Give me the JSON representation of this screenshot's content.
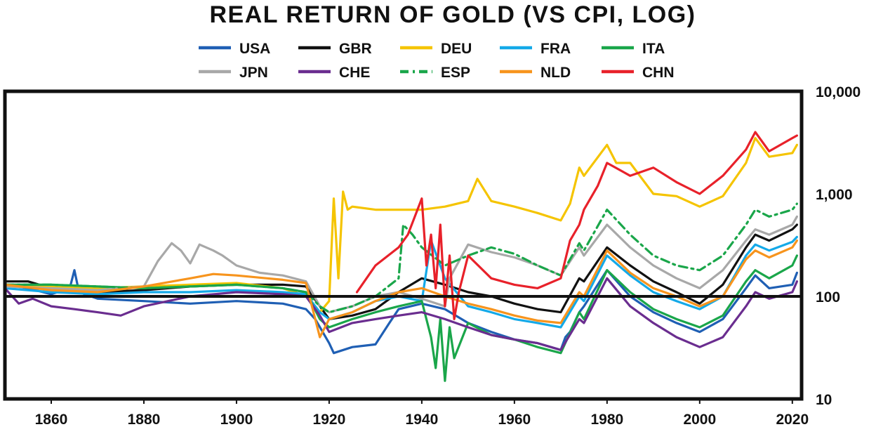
{
  "chart_data": {
    "type": "line",
    "title": "REAL RETURN OF GOLD (VS CPI, LOG)",
    "xlabel": "",
    "ylabel": "",
    "y_scale": "log",
    "xlim": [
      1850,
      2022
    ],
    "ylim": [
      10,
      10000
    ],
    "x_ticks": [
      1860,
      1880,
      1900,
      1920,
      1940,
      1960,
      1980,
      2000,
      2020
    ],
    "x_tick_labels": [
      "1860",
      "1880",
      "1900",
      "1920",
      "1940",
      "1960",
      "1980",
      "2000",
      "2020"
    ],
    "y_ticks": [
      10,
      100,
      1000,
      10000
    ],
    "y_tick_labels": [
      "10",
      "100",
      "1,000",
      "10,000"
    ],
    "y_axis_side": "right",
    "reference_line": 100,
    "legend_position": "top",
    "series": [
      {
        "name": "USA",
        "color": "#1f5fb4",
        "dash": "solid",
        "x": [
          1850,
          1855,
          1860,
          1864,
          1865,
          1866,
          1870,
          1880,
          1890,
          1900,
          1910,
          1915,
          1917,
          1920,
          1921,
          1925,
          1930,
          1933,
          1935,
          1940,
          1945,
          1950,
          1955,
          1960,
          1965,
          1970,
          1971,
          1972,
          1974,
          1975,
          1980,
          1985,
          1990,
          1995,
          2000,
          2005,
          2010,
          2012,
          2015,
          2020,
          2021
        ],
        "values": [
          130,
          120,
          105,
          120,
          180,
          110,
          95,
          90,
          85,
          90,
          85,
          75,
          60,
          35,
          28,
          32,
          34,
          55,
          75,
          85,
          75,
          55,
          45,
          38,
          35,
          30,
          40,
          45,
          70,
          80,
          180,
          100,
          70,
          55,
          45,
          60,
          120,
          160,
          120,
          130,
          170
        ]
      },
      {
        "name": "GBR",
        "color": "#111111",
        "dash": "solid",
        "x": [
          1850,
          1855,
          1860,
          1870,
          1880,
          1890,
          1900,
          1910,
          1915,
          1918,
          1920,
          1925,
          1930,
          1935,
          1940,
          1945,
          1950,
          1955,
          1960,
          1965,
          1970,
          1974,
          1975,
          1980,
          1985,
          1990,
          1995,
          2000,
          2005,
          2010,
          2012,
          2015,
          2020,
          2021
        ],
        "values": [
          140,
          140,
          120,
          110,
          115,
          125,
          130,
          130,
          125,
          80,
          60,
          65,
          75,
          110,
          150,
          130,
          110,
          100,
          85,
          75,
          70,
          150,
          140,
          300,
          200,
          140,
          110,
          85,
          130,
          300,
          400,
          350,
          450,
          500
        ]
      },
      {
        "name": "DEU",
        "color": "#f5c400",
        "dash": "solid",
        "x": [
          1850,
          1860,
          1870,
          1880,
          1890,
          1900,
          1910,
          1915,
          1918,
          1920,
          1921,
          1922,
          1923,
          1924,
          1925,
          1930,
          1935,
          1940,
          1945,
          1950,
          1952,
          1955,
          1960,
          1965,
          1970,
          1972,
          1974,
          1975,
          1980,
          1982,
          1985,
          1990,
          1995,
          2000,
          2005,
          2010,
          2012,
          2015,
          2020,
          2021
        ],
        "values": [
          130,
          125,
          120,
          125,
          130,
          135,
          120,
          100,
          70,
          90,
          900,
          150,
          1050,
          700,
          750,
          700,
          700,
          700,
          750,
          850,
          1400,
          850,
          750,
          650,
          550,
          800,
          1800,
          1500,
          3000,
          2000,
          2000,
          1000,
          950,
          750,
          950,
          2000,
          3500,
          2300,
          2500,
          3000
        ]
      },
      {
        "name": "FRA",
        "color": "#14a9e8",
        "dash": "solid",
        "x": [
          1850,
          1860,
          1870,
          1880,
          1890,
          1900,
          1910,
          1915,
          1918,
          1920,
          1925,
          1930,
          1935,
          1940,
          1942,
          1945,
          1950,
          1955,
          1960,
          1965,
          1970,
          1974,
          1975,
          1980,
          1985,
          1990,
          1995,
          2000,
          2005,
          2010,
          2012,
          2015,
          2020,
          2021
        ],
        "values": [
          120,
          110,
          105,
          110,
          110,
          115,
          110,
          105,
          70,
          60,
          70,
          90,
          100,
          90,
          350,
          150,
          80,
          70,
          60,
          55,
          50,
          100,
          90,
          250,
          160,
          110,
          90,
          75,
          100,
          250,
          320,
          280,
          340,
          380
        ]
      },
      {
        "name": "ITA",
        "color": "#1aa64a",
        "dash": "solid",
        "x": [
          1850,
          1860,
          1870,
          1880,
          1890,
          1900,
          1910,
          1915,
          1918,
          1920,
          1925,
          1930,
          1935,
          1940,
          1942,
          1943,
          1944,
          1945,
          1946,
          1947,
          1950,
          1955,
          1960,
          1965,
          1970,
          1974,
          1975,
          1980,
          1985,
          1990,
          1995,
          2000,
          2005,
          2010,
          2012,
          2015,
          2020,
          2021
        ],
        "values": [
          130,
          130,
          125,
          120,
          125,
          130,
          120,
          110,
          60,
          50,
          60,
          70,
          80,
          90,
          40,
          20,
          60,
          15,
          50,
          25,
          55,
          42,
          38,
          32,
          28,
          70,
          60,
          180,
          110,
          75,
          60,
          50,
          65,
          140,
          180,
          150,
          200,
          250
        ]
      },
      {
        "name": "JPN",
        "color": "#a8a8a8",
        "dash": "solid",
        "x": [
          1850,
          1860,
          1870,
          1880,
          1883,
          1886,
          1888,
          1890,
          1892,
          1895,
          1897,
          1900,
          1905,
          1910,
          1915,
          1918,
          1920,
          1925,
          1930,
          1935,
          1940,
          1945,
          1946,
          1950,
          1955,
          1960,
          1965,
          1970,
          1974,
          1975,
          1980,
          1985,
          1990,
          1995,
          2000,
          2005,
          2010,
          2012,
          2015,
          2020,
          2021
        ],
        "values": [
          125,
          120,
          115,
          125,
          220,
          330,
          280,
          210,
          320,
          280,
          250,
          200,
          170,
          160,
          140,
          80,
          70,
          80,
          100,
          110,
          95,
          80,
          150,
          320,
          270,
          240,
          200,
          160,
          300,
          250,
          500,
          300,
          200,
          150,
          120,
          180,
          350,
          450,
          400,
          500,
          600
        ]
      },
      {
        "name": "CHE",
        "color": "#6a2d8f",
        "dash": "solid",
        "x": [
          1850,
          1853,
          1856,
          1860,
          1865,
          1870,
          1875,
          1880,
          1890,
          1900,
          1910,
          1915,
          1918,
          1920,
          1925,
          1930,
          1935,
          1940,
          1945,
          1950,
          1955,
          1960,
          1965,
          1970,
          1974,
          1975,
          1980,
          1985,
          1990,
          1995,
          2000,
          2005,
          2010,
          2012,
          2015,
          2020,
          2021
        ],
        "values": [
          120,
          85,
          95,
          80,
          75,
          70,
          65,
          80,
          100,
          110,
          105,
          100,
          65,
          45,
          55,
          60,
          65,
          70,
          60,
          50,
          42,
          38,
          35,
          30,
          60,
          55,
          150,
          80,
          55,
          40,
          32,
          40,
          80,
          110,
          95,
          110,
          140
        ]
      },
      {
        "name": "ESP",
        "color": "#1aa64a",
        "dash": "dashdot",
        "x": [
          1850,
          1860,
          1870,
          1880,
          1890,
          1900,
          1910,
          1915,
          1918,
          1920,
          1925,
          1930,
          1935,
          1936,
          1938,
          1940,
          1945,
          1950,
          1955,
          1960,
          1965,
          1970,
          1974,
          1975,
          1980,
          1985,
          1990,
          1995,
          2000,
          2005,
          2010,
          2012,
          2015,
          2020,
          2021
        ],
        "values": [
          130,
          130,
          125,
          120,
          125,
          130,
          120,
          110,
          80,
          70,
          80,
          100,
          150,
          500,
          400,
          300,
          200,
          250,
          300,
          260,
          200,
          160,
          330,
          280,
          700,
          400,
          250,
          200,
          180,
          250,
          500,
          700,
          600,
          700,
          800
        ]
      },
      {
        "name": "NLD",
        "color": "#f7941d",
        "dash": "solid",
        "x": [
          1850,
          1860,
          1870,
          1880,
          1890,
          1895,
          1900,
          1910,
          1915,
          1918,
          1920,
          1925,
          1930,
          1935,
          1940,
          1945,
          1950,
          1955,
          1960,
          1965,
          1970,
          1974,
          1975,
          1980,
          1985,
          1990,
          1995,
          2000,
          2005,
          2010,
          2012,
          2015,
          2020,
          2021
        ],
        "values": [
          130,
          115,
          110,
          125,
          150,
          165,
          160,
          145,
          135,
          40,
          60,
          70,
          90,
          110,
          120,
          100,
          85,
          75,
          65,
          58,
          55,
          110,
          100,
          280,
          170,
          120,
          100,
          80,
          100,
          230,
          280,
          240,
          300,
          350
        ]
      },
      {
        "name": "CHN",
        "color": "#e8212a",
        "dash": "solid",
        "x": [
          1926,
          1930,
          1935,
          1937,
          1940,
          1941,
          1942,
          1943,
          1944,
          1945,
          1946,
          1947,
          1948,
          1950,
          1955,
          1960,
          1965,
          1970,
          1972,
          1974,
          1975,
          1978,
          1980,
          1985,
          1990,
          1995,
          2000,
          2005,
          2010,
          2012,
          2015,
          2020,
          2021
        ],
        "values": [
          110,
          200,
          300,
          400,
          900,
          200,
          400,
          120,
          500,
          80,
          250,
          60,
          110,
          250,
          150,
          130,
          120,
          150,
          350,
          500,
          700,
          1200,
          2000,
          1500,
          1800,
          1300,
          1000,
          1500,
          2700,
          4000,
          2600,
          3500,
          3700
        ]
      }
    ]
  }
}
